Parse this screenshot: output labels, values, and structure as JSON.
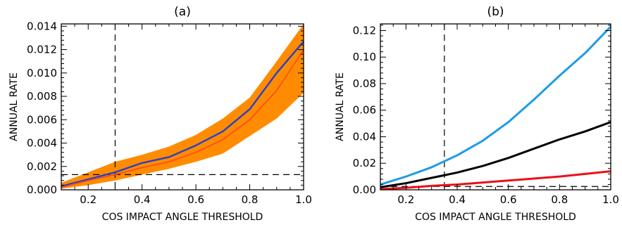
{
  "chart_data": [
    {
      "type": "line",
      "title": "(a)",
      "xlabel": "COS IMPACT ANGLE THRESHOLD",
      "ylabel": "ANNUAL RATE",
      "xlim": [
        0.1,
        1.0
      ],
      "ylim": [
        0,
        0.0142
      ],
      "xticks": [
        "0.2",
        "0.4",
        "0.6",
        "0.8",
        "1.0"
      ],
      "yticks": [
        "0.000",
        "0.002",
        "0.004",
        "0.006",
        "0.008",
        "0.010",
        "0.012",
        "0.014"
      ],
      "x": [
        0.1,
        0.2,
        0.3,
        0.4,
        0.5,
        0.6,
        0.7,
        0.8,
        0.9,
        1.0
      ],
      "band": {
        "color": "#ff8c00",
        "lower": [
          0.0001,
          0.0004,
          0.0008,
          0.0013,
          0.0018,
          0.0024,
          0.0031,
          0.0046,
          0.0061,
          0.0083
        ],
        "upper": [
          0.0006,
          0.0015,
          0.0024,
          0.003,
          0.0037,
          0.0047,
          0.0061,
          0.0079,
          0.011,
          0.0142
        ]
      },
      "series": [
        {
          "color": "#2b3fc7",
          "values": [
            0.0003,
            0.0009,
            0.0015,
            0.0023,
            0.0028,
            0.0038,
            0.005,
            0.0069,
            0.01,
            0.0127
          ]
        },
        {
          "color": "#ff4d1a",
          "values": [
            0.0002,
            0.0008,
            0.0013,
            0.0019,
            0.0024,
            0.0032,
            0.0043,
            0.006,
            0.0085,
            0.012
          ]
        }
      ],
      "reference_lines": {
        "vertical_x": 0.3,
        "horizontal_y": 0.0013
      }
    },
    {
      "type": "line",
      "title": "(b)",
      "xlabel": "COS IMPACT ANGLE THRESHOLD",
      "ylabel": "ANNUAL RATE",
      "xlim": [
        0.1,
        1.0
      ],
      "ylim": [
        0,
        0.125
      ],
      "xticks": [
        "0.2",
        "0.4",
        "0.6",
        "0.8",
        "1.0"
      ],
      "yticks": [
        "0.00",
        "0.02",
        "0.04",
        "0.06",
        "0.08",
        "0.10",
        "0.12"
      ],
      "x": [
        0.1,
        0.2,
        0.3,
        0.4,
        0.5,
        0.6,
        0.7,
        0.8,
        0.9,
        1.0
      ],
      "series": [
        {
          "color": "#1e9be6",
          "values": [
            0.004,
            0.01,
            0.017,
            0.026,
            0.037,
            0.051,
            0.068,
            0.086,
            0.103,
            0.123
          ]
        },
        {
          "color": "#000000",
          "values": [
            0.002,
            0.005,
            0.009,
            0.013,
            0.018,
            0.024,
            0.031,
            0.038,
            0.044,
            0.051
          ]
        },
        {
          "color": "#e8101a",
          "values": [
            0.0005,
            0.0015,
            0.003,
            0.004,
            0.0055,
            0.007,
            0.0085,
            0.01,
            0.012,
            0.014
          ]
        }
      ],
      "reference_lines": {
        "vertical_x": 0.35,
        "horizontal_y": 0.0025
      }
    }
  ]
}
